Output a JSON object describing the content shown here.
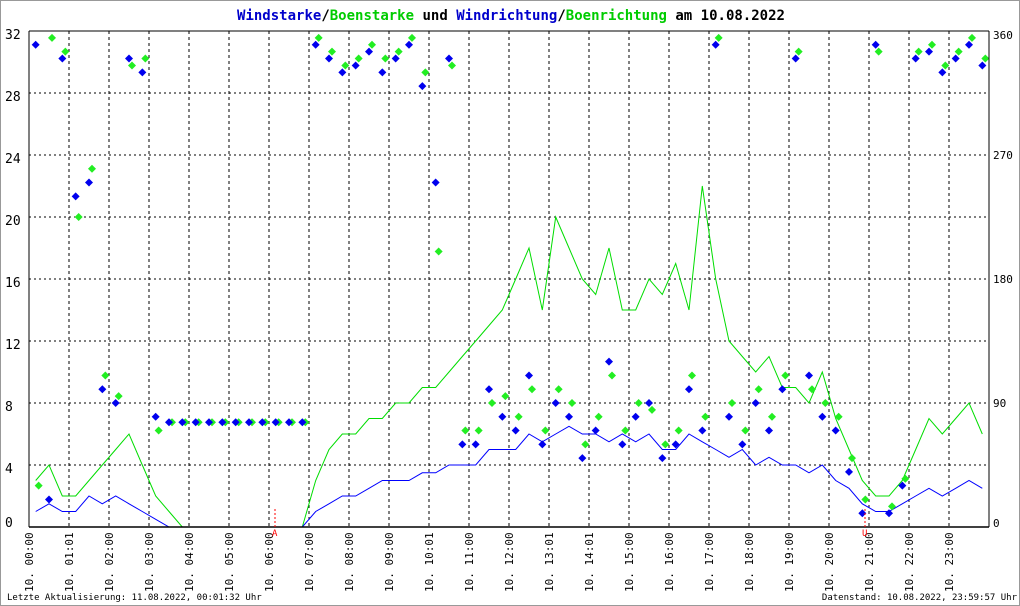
{
  "chart_data": {
    "type": "line",
    "title_parts": [
      {
        "text": "Windstarke",
        "color": "#0000cc"
      },
      {
        "text": "/",
        "color": "#000000"
      },
      {
        "text": "Boenstarke",
        "color": "#00cc00"
      },
      {
        "text": " und ",
        "color": "#000000"
      },
      {
        "text": "Windrichtung",
        "color": "#0000cc"
      },
      {
        "text": "/",
        "color": "#000000"
      },
      {
        "text": "Boenrichtung",
        "color": "#00cc00"
      },
      {
        "text": " am 10.08.2022",
        "color": "#000000"
      }
    ],
    "left_axis": {
      "ylim": [
        0,
        32
      ],
      "ticks": [
        "0",
        "4",
        "8",
        "12",
        "16",
        "20",
        "24",
        "28",
        "32"
      ]
    },
    "right_axis": {
      "ylim": [
        0,
        360
      ],
      "ticks": [
        "0",
        "90",
        "180",
        "270",
        "360"
      ]
    },
    "x_tick_labels": [
      "10. 00:00",
      "10. 01:01",
      "10. 02:00",
      "10. 03:00",
      "10. 04:00",
      "10. 05:00",
      "10. 06:00",
      "10. 07:00",
      "10. 08:00",
      "10. 09:00",
      "10. 10:01",
      "10. 11:00",
      "10. 12:00",
      "10. 13:01",
      "10. 14:01",
      "10. 15:00",
      "10. 16:00",
      "10. 17:00",
      "10. 18:00",
      "10. 19:00",
      "10. 20:00",
      "10. 21:00",
      "10. 22:00",
      "10. 23:00"
    ],
    "xlim_hours": [
      0,
      24
    ],
    "markers": [
      {
        "label": "A",
        "hour": 6.15,
        "color": "#ff0000"
      },
      {
        "label": "U",
        "hour": 20.9,
        "color": "#ff0000"
      }
    ],
    "grid": true,
    "sample_interval_minutes": 20,
    "series": [
      {
        "name": "Windstarke",
        "color": "#0000ff",
        "kind": "line",
        "axis": "left",
        "values": [
          1,
          1.5,
          1,
          1,
          2,
          1.5,
          2,
          1.5,
          1,
          0.5,
          0,
          0,
          0,
          0,
          0,
          0,
          0,
          0,
          0,
          0,
          0,
          1,
          1.5,
          2,
          2,
          2.5,
          3,
          3,
          3,
          3.5,
          3.5,
          4,
          4,
          4,
          5,
          5,
          5,
          6,
          5.5,
          6,
          6.5,
          6,
          6,
          5.5,
          6,
          5.5,
          6,
          5,
          5,
          6,
          5.5,
          5,
          4.5,
          5,
          4,
          4.5,
          4,
          4,
          3.5,
          4,
          3,
          2.5,
          1.5,
          1,
          1,
          1.5,
          2,
          2.5,
          2,
          2.5,
          3,
          2.5
        ]
      },
      {
        "name": "Boenstarke",
        "color": "#00dd00",
        "kind": "line",
        "axis": "left",
        "values": [
          3,
          4,
          2,
          2,
          3,
          4,
          5,
          6,
          4,
          2,
          1,
          0,
          0,
          0,
          0,
          0,
          0,
          0,
          0,
          0,
          0,
          3,
          5,
          6,
          6,
          7,
          7,
          8,
          8,
          9,
          9,
          10,
          11,
          12,
          13,
          14,
          16,
          18,
          14,
          20,
          18,
          16,
          15,
          18,
          14,
          14,
          16,
          15,
          17,
          14,
          22,
          16,
          12,
          11,
          10,
          11,
          9,
          9,
          8,
          10,
          7,
          5,
          3,
          2,
          2,
          3,
          5,
          7,
          6,
          7,
          8,
          6
        ]
      },
      {
        "name": "Windrichtung",
        "color": "#0000ee",
        "kind": "points",
        "axis": "right",
        "values": [
          350,
          20,
          340,
          240,
          250,
          100,
          90,
          340,
          330,
          80,
          76,
          76,
          76,
          76,
          76,
          76,
          76,
          76,
          76,
          76,
          76,
          350,
          340,
          330,
          335,
          345,
          330,
          340,
          350,
          320,
          250,
          340,
          60,
          60,
          100,
          80,
          70,
          110,
          60,
          90,
          80,
          50,
          70,
          120,
          60,
          80,
          90,
          50,
          60,
          100,
          70,
          350,
          80,
          60,
          90,
          70,
          100,
          340,
          110,
          80,
          70,
          40,
          10,
          350,
          10,
          30,
          340,
          345,
          330,
          340,
          350,
          335
        ]
      },
      {
        "name": "Boenrichtung",
        "color": "#22ee22",
        "kind": "points",
        "axis": "right",
        "values": [
          30,
          355,
          345,
          225,
          260,
          110,
          95,
          335,
          340,
          70,
          76,
          76,
          76,
          76,
          76,
          76,
          76,
          76,
          76,
          76,
          76,
          355,
          345,
          335,
          340,
          350,
          340,
          345,
          355,
          330,
          200,
          335,
          70,
          70,
          90,
          95,
          80,
          100,
          70,
          100,
          90,
          60,
          80,
          110,
          70,
          90,
          85,
          60,
          70,
          110,
          80,
          355,
          90,
          70,
          100,
          80,
          110,
          345,
          100,
          90,
          80,
          50,
          20,
          345,
          15,
          35,
          345,
          350,
          335,
          345,
          355,
          340
        ]
      }
    ]
  },
  "footer": {
    "left": "Letzte Aktualisierung: 11.08.2022, 00:01:32 Uhr",
    "right": "Datenstand: 10.08.2022, 23:59:57 Uhr"
  }
}
